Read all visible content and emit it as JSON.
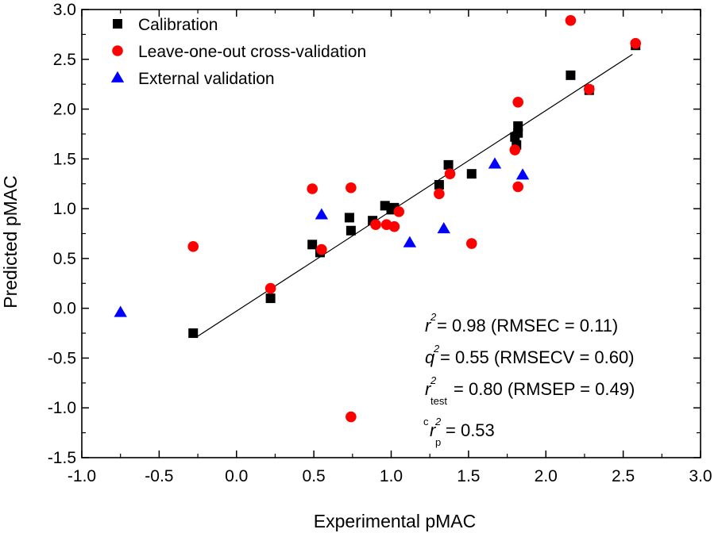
{
  "chart_data": {
    "type": "scatter",
    "title": "",
    "xlabel": "Experimental pMAC",
    "ylabel": "Predicted pMAC",
    "xlim": [
      -1.0,
      3.0
    ],
    "ylim": [
      -1.5,
      3.0
    ],
    "xticks": [
      -1.0,
      -0.5,
      0.0,
      0.5,
      1.0,
      1.5,
      2.0,
      2.5,
      3.0
    ],
    "yticks": [
      -1.5,
      -1.0,
      -0.5,
      0.0,
      0.5,
      1.0,
      1.5,
      2.0,
      2.5,
      3.0
    ],
    "xtick_labels": [
      "-1.0",
      "-0.5",
      "0.0",
      "0.5",
      "1.0",
      "1.5",
      "2.0",
      "2.5",
      "3.0"
    ],
    "ytick_labels": [
      "-1.5",
      "-1.0",
      "-0.5",
      "0.0",
      "0.5",
      "1.0",
      "1.5",
      "2.0",
      "2.5",
      "3.0"
    ],
    "legend_position": "top-left",
    "series": [
      {
        "name": "Calibration",
        "marker": "square",
        "color": "#000000",
        "x": [
          -0.28,
          0.22,
          0.49,
          0.54,
          0.73,
          0.74,
          0.88,
          0.96,
          1.0,
          1.02,
          1.31,
          1.37,
          1.52,
          1.8,
          1.81,
          1.82,
          1.82,
          2.16,
          2.28,
          2.58
        ],
        "y": [
          -0.25,
          0.1,
          0.64,
          0.56,
          0.91,
          0.78,
          0.88,
          1.03,
          0.99,
          1.01,
          1.24,
          1.44,
          1.35,
          1.72,
          1.64,
          1.76,
          1.83,
          2.34,
          2.19,
          2.64
        ]
      },
      {
        "name": "Leave-one-out cross-validation",
        "marker": "circle",
        "color": "#ff0000",
        "x": [
          -0.28,
          0.22,
          0.49,
          0.55,
          0.74,
          0.74,
          0.9,
          0.97,
          1.02,
          1.05,
          1.31,
          1.38,
          1.52,
          1.8,
          1.82,
          1.82,
          2.16,
          2.28,
          2.58
        ],
        "y": [
          0.62,
          0.2,
          1.2,
          0.59,
          1.21,
          -1.09,
          0.84,
          0.84,
          0.82,
          0.97,
          1.15,
          1.35,
          0.65,
          1.59,
          1.22,
          2.07,
          2.89,
          2.2,
          2.66
        ]
      },
      {
        "name": "External validation",
        "marker": "triangle",
        "color": "#0000ff",
        "x": [
          -0.75,
          0.55,
          1.12,
          1.34,
          1.67,
          1.85
        ],
        "y": [
          -0.04,
          0.94,
          0.66,
          0.8,
          1.45,
          1.34
        ]
      }
    ],
    "fit_line": {
      "x": [
        -0.25,
        2.56
      ],
      "y": [
        -0.28,
        2.55
      ],
      "color": "#000000"
    },
    "annotations": [
      {
        "var": "r",
        "sup": "2",
        "sub": "",
        "text": " = 0.98 (RMSEC = 0.11)"
      },
      {
        "var": "q",
        "sup": "2",
        "sub": "",
        "text": " = 0.55 (RMSECV = 0.60)"
      },
      {
        "var": "r",
        "sup": "2",
        "sub": "test",
        "text": " = 0.80 (RMSEP = 0.49)"
      },
      {
        "var": "r",
        "sup": "2",
        "sub": "p",
        "pre": "c",
        "text": " = 0.53"
      }
    ]
  }
}
